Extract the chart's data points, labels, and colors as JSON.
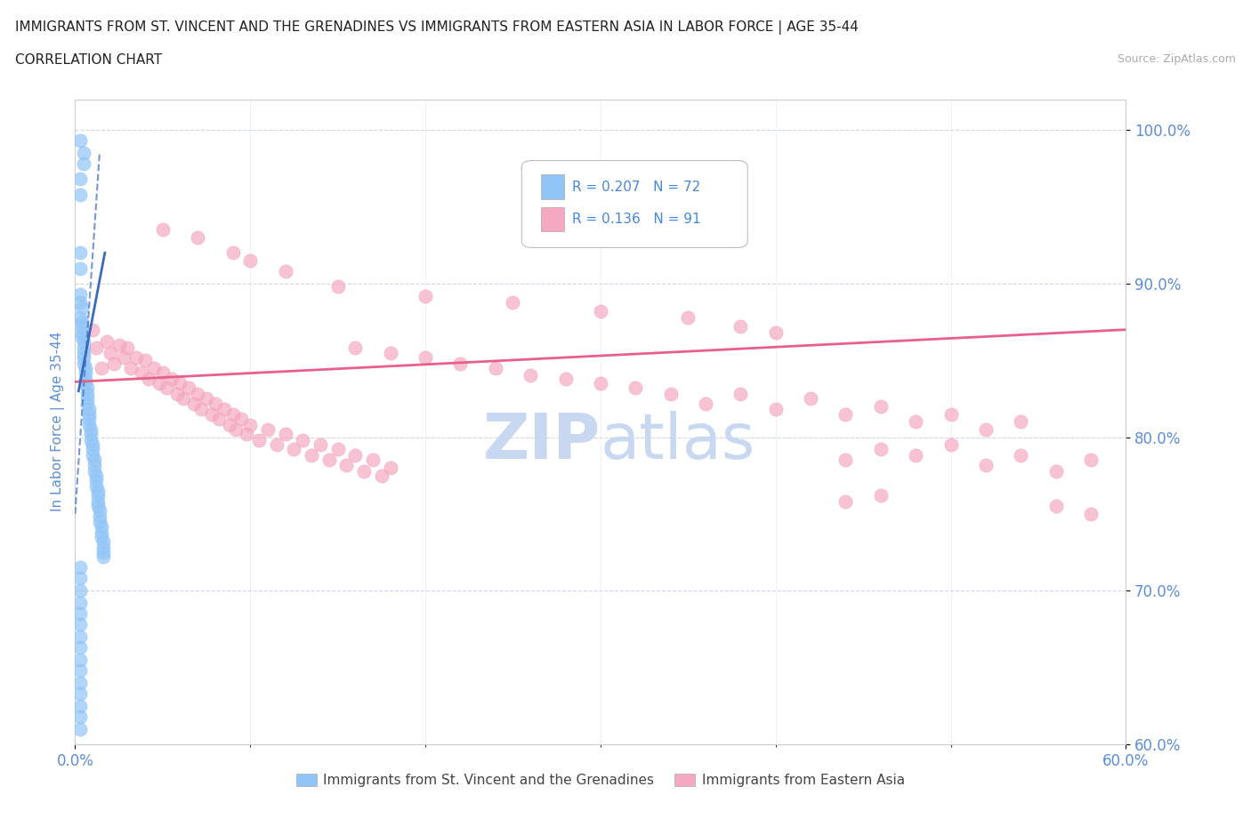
{
  "title_line1": "IMMIGRANTS FROM ST. VINCENT AND THE GRENADINES VS IMMIGRANTS FROM EASTERN ASIA IN LABOR FORCE | AGE 35-44",
  "title_line2": "CORRELATION CHART",
  "source_text": "Source: ZipAtlas.com",
  "ylabel": "In Labor Force | Age 35-44",
  "xmin": 0.0,
  "xmax": 0.6,
  "ymin": 0.6,
  "ymax": 1.02,
  "yticks": [
    0.6,
    0.7,
    0.8,
    0.9,
    1.0
  ],
  "ytick_labels": [
    "60.0%",
    "70.0%",
    "80.0%",
    "90.0%",
    "100.0%"
  ],
  "xticks": [
    0.0,
    0.1,
    0.2,
    0.3,
    0.4,
    0.5,
    0.6
  ],
  "xtick_major": [
    0.0,
    0.6
  ],
  "xtick_labels": [
    "0.0%",
    "60.0%"
  ],
  "blue_color": "#92c5f7",
  "pink_color": "#f5a8bf",
  "trendline_blue_color": "#3a6bbf",
  "trendline_pink_color": "#e8608a",
  "watermark_color": "#c8d8f0",
  "axis_label_color": "#5b8dd9",
  "tick_color": "#5b8dd9",
  "legend_text_color_r": "#333333",
  "legend_text_color_val": "#4488dd",
  "blue_scatter": [
    [
      0.003,
      0.993
    ],
    [
      0.005,
      0.985
    ],
    [
      0.005,
      0.978
    ],
    [
      0.003,
      0.968
    ],
    [
      0.003,
      0.958
    ],
    [
      0.003,
      0.92
    ],
    [
      0.003,
      0.91
    ],
    [
      0.003,
      0.893
    ],
    [
      0.003,
      0.888
    ],
    [
      0.004,
      0.884
    ],
    [
      0.003,
      0.878
    ],
    [
      0.004,
      0.875
    ],
    [
      0.004,
      0.872
    ],
    [
      0.004,
      0.868
    ],
    [
      0.004,
      0.865
    ],
    [
      0.005,
      0.862
    ],
    [
      0.005,
      0.858
    ],
    [
      0.005,
      0.855
    ],
    [
      0.005,
      0.852
    ],
    [
      0.005,
      0.848
    ],
    [
      0.006,
      0.845
    ],
    [
      0.006,
      0.842
    ],
    [
      0.006,
      0.838
    ],
    [
      0.006,
      0.835
    ],
    [
      0.007,
      0.832
    ],
    [
      0.007,
      0.828
    ],
    [
      0.007,
      0.825
    ],
    [
      0.007,
      0.822
    ],
    [
      0.008,
      0.818
    ],
    [
      0.008,
      0.815
    ],
    [
      0.008,
      0.812
    ],
    [
      0.008,
      0.808
    ],
    [
      0.009,
      0.805
    ],
    [
      0.009,
      0.802
    ],
    [
      0.009,
      0.798
    ],
    [
      0.01,
      0.795
    ],
    [
      0.01,
      0.792
    ],
    [
      0.01,
      0.788
    ],
    [
      0.011,
      0.785
    ],
    [
      0.011,
      0.782
    ],
    [
      0.011,
      0.778
    ],
    [
      0.012,
      0.775
    ],
    [
      0.012,
      0.772
    ],
    [
      0.012,
      0.768
    ],
    [
      0.013,
      0.765
    ],
    [
      0.013,
      0.762
    ],
    [
      0.013,
      0.758
    ],
    [
      0.013,
      0.755
    ],
    [
      0.014,
      0.752
    ],
    [
      0.014,
      0.748
    ],
    [
      0.014,
      0.745
    ],
    [
      0.015,
      0.742
    ],
    [
      0.015,
      0.738
    ],
    [
      0.015,
      0.735
    ],
    [
      0.016,
      0.732
    ],
    [
      0.016,
      0.728
    ],
    [
      0.016,
      0.725
    ],
    [
      0.016,
      0.722
    ],
    [
      0.003,
      0.715
    ],
    [
      0.003,
      0.708
    ],
    [
      0.003,
      0.7
    ],
    [
      0.003,
      0.692
    ],
    [
      0.003,
      0.685
    ],
    [
      0.003,
      0.678
    ],
    [
      0.003,
      0.67
    ],
    [
      0.003,
      0.663
    ],
    [
      0.003,
      0.655
    ],
    [
      0.003,
      0.648
    ],
    [
      0.003,
      0.64
    ],
    [
      0.003,
      0.633
    ],
    [
      0.003,
      0.625
    ],
    [
      0.003,
      0.618
    ],
    [
      0.003,
      0.61
    ]
  ],
  "pink_scatter": [
    [
      0.01,
      0.87
    ],
    [
      0.012,
      0.858
    ],
    [
      0.015,
      0.845
    ],
    [
      0.018,
      0.862
    ],
    [
      0.02,
      0.855
    ],
    [
      0.022,
      0.848
    ],
    [
      0.025,
      0.86
    ],
    [
      0.028,
      0.852
    ],
    [
      0.03,
      0.858
    ],
    [
      0.032,
      0.845
    ],
    [
      0.035,
      0.852
    ],
    [
      0.038,
      0.842
    ],
    [
      0.04,
      0.85
    ],
    [
      0.042,
      0.838
    ],
    [
      0.045,
      0.845
    ],
    [
      0.048,
      0.835
    ],
    [
      0.05,
      0.842
    ],
    [
      0.052,
      0.832
    ],
    [
      0.055,
      0.838
    ],
    [
      0.058,
      0.828
    ],
    [
      0.06,
      0.835
    ],
    [
      0.062,
      0.825
    ],
    [
      0.065,
      0.832
    ],
    [
      0.068,
      0.822
    ],
    [
      0.07,
      0.828
    ],
    [
      0.072,
      0.818
    ],
    [
      0.075,
      0.825
    ],
    [
      0.078,
      0.815
    ],
    [
      0.08,
      0.822
    ],
    [
      0.082,
      0.812
    ],
    [
      0.085,
      0.818
    ],
    [
      0.088,
      0.808
    ],
    [
      0.09,
      0.815
    ],
    [
      0.092,
      0.805
    ],
    [
      0.095,
      0.812
    ],
    [
      0.098,
      0.802
    ],
    [
      0.1,
      0.808
    ],
    [
      0.105,
      0.798
    ],
    [
      0.11,
      0.805
    ],
    [
      0.115,
      0.795
    ],
    [
      0.12,
      0.802
    ],
    [
      0.125,
      0.792
    ],
    [
      0.13,
      0.798
    ],
    [
      0.135,
      0.788
    ],
    [
      0.14,
      0.795
    ],
    [
      0.145,
      0.785
    ],
    [
      0.15,
      0.792
    ],
    [
      0.155,
      0.782
    ],
    [
      0.16,
      0.788
    ],
    [
      0.165,
      0.778
    ],
    [
      0.17,
      0.785
    ],
    [
      0.175,
      0.775
    ],
    [
      0.18,
      0.78
    ],
    [
      0.05,
      0.935
    ],
    [
      0.07,
      0.93
    ],
    [
      0.09,
      0.92
    ],
    [
      0.1,
      0.915
    ],
    [
      0.12,
      0.908
    ],
    [
      0.15,
      0.898
    ],
    [
      0.2,
      0.892
    ],
    [
      0.25,
      0.888
    ],
    [
      0.3,
      0.882
    ],
    [
      0.35,
      0.878
    ],
    [
      0.38,
      0.872
    ],
    [
      0.4,
      0.868
    ],
    [
      0.16,
      0.858
    ],
    [
      0.18,
      0.855
    ],
    [
      0.2,
      0.852
    ],
    [
      0.22,
      0.848
    ],
    [
      0.24,
      0.845
    ],
    [
      0.26,
      0.84
    ],
    [
      0.28,
      0.838
    ],
    [
      0.3,
      0.835
    ],
    [
      0.32,
      0.832
    ],
    [
      0.34,
      0.828
    ],
    [
      0.36,
      0.822
    ],
    [
      0.38,
      0.828
    ],
    [
      0.4,
      0.818
    ],
    [
      0.42,
      0.825
    ],
    [
      0.44,
      0.815
    ],
    [
      0.46,
      0.82
    ],
    [
      0.48,
      0.81
    ],
    [
      0.5,
      0.815
    ],
    [
      0.52,
      0.805
    ],
    [
      0.54,
      0.81
    ],
    [
      0.44,
      0.785
    ],
    [
      0.46,
      0.792
    ],
    [
      0.48,
      0.788
    ],
    [
      0.5,
      0.795
    ],
    [
      0.52,
      0.782
    ],
    [
      0.54,
      0.788
    ],
    [
      0.56,
      0.778
    ],
    [
      0.58,
      0.785
    ],
    [
      0.44,
      0.758
    ],
    [
      0.46,
      0.762
    ],
    [
      0.56,
      0.755
    ],
    [
      0.58,
      0.75
    ]
  ]
}
